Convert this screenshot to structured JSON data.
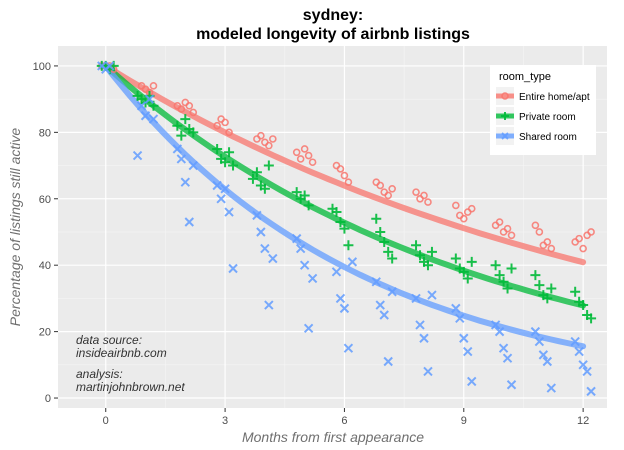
{
  "chart_data": {
    "type": "scatter",
    "title": "sydney:",
    "subtitle": "modeled longevity of airbnb listings",
    "xlabel": "Months from first appearance",
    "ylabel": "Percentage of listings still active",
    "xlim": [
      -1.2,
      12.6
    ],
    "ylim": [
      -3,
      106
    ],
    "xticks": [
      0,
      3,
      6,
      9,
      12
    ],
    "yticks": [
      0,
      20,
      40,
      60,
      80,
      100
    ],
    "grid": true,
    "legend": {
      "title": "room_type",
      "position": "top-right"
    },
    "annotations": [
      "data source:",
      "insideairbnb.com",
      "analysis:",
      "martinjohnbrown.net"
    ],
    "series": [
      {
        "name": "Entire home/apt",
        "color": "#F8766D",
        "marker": "circle",
        "fit_rate": 0.0745,
        "points": [
          [
            -0.1,
            100
          ],
          [
            0,
            100
          ],
          [
            0.1,
            100
          ],
          [
            0.2,
            99
          ],
          [
            0.9,
            94
          ],
          [
            1,
            93
          ],
          [
            1.1,
            92
          ],
          [
            1.2,
            94
          ],
          [
            1.8,
            88
          ],
          [
            1.9,
            87
          ],
          [
            2,
            89
          ],
          [
            2.1,
            88
          ],
          [
            2.2,
            86
          ],
          [
            2.8,
            82
          ],
          [
            2.9,
            84
          ],
          [
            3,
            83
          ],
          [
            3.1,
            80
          ],
          [
            3.8,
            78
          ],
          [
            3.9,
            79
          ],
          [
            4,
            77
          ],
          [
            4.1,
            76
          ],
          [
            4.2,
            78
          ],
          [
            4.8,
            74
          ],
          [
            4.9,
            72
          ],
          [
            5,
            75
          ],
          [
            5.1,
            73
          ],
          [
            5.2,
            71
          ],
          [
            5.8,
            70
          ],
          [
            5.9,
            69
          ],
          [
            6,
            67
          ],
          [
            6.1,
            65
          ],
          [
            6.8,
            65
          ],
          [
            6.9,
            64
          ],
          [
            7,
            62
          ],
          [
            7.1,
            61
          ],
          [
            7.2,
            63
          ],
          [
            7.8,
            62
          ],
          [
            7.9,
            60
          ],
          [
            8,
            61
          ],
          [
            8.1,
            59
          ],
          [
            8.8,
            58
          ],
          [
            8.9,
            55
          ],
          [
            9,
            54
          ],
          [
            9.1,
            56
          ],
          [
            9.2,
            57
          ],
          [
            9.8,
            52
          ],
          [
            9.9,
            53
          ],
          [
            10,
            50
          ],
          [
            10.1,
            51
          ],
          [
            10.2,
            49
          ],
          [
            10.8,
            52
          ],
          [
            10.9,
            50
          ],
          [
            11,
            46
          ],
          [
            11.1,
            47
          ],
          [
            11.2,
            45
          ],
          [
            11.8,
            47
          ],
          [
            11.9,
            48
          ],
          [
            12,
            45
          ],
          [
            12.1,
            49
          ],
          [
            12.2,
            50
          ]
        ]
      },
      {
        "name": "Private room",
        "color": "#00BA38",
        "marker": "plus",
        "fit_rate": 0.1065,
        "points": [
          [
            -0.1,
            100
          ],
          [
            0,
            100
          ],
          [
            0.1,
            99
          ],
          [
            0.2,
            100
          ],
          [
            0.8,
            91
          ],
          [
            0.9,
            90
          ],
          [
            1,
            89
          ],
          [
            1.1,
            91
          ],
          [
            1.2,
            88
          ],
          [
            1.8,
            82
          ],
          [
            1.9,
            79
          ],
          [
            2,
            84
          ],
          [
            2.1,
            81
          ],
          [
            2.2,
            80
          ],
          [
            2.8,
            75
          ],
          [
            2.9,
            72
          ],
          [
            3,
            71
          ],
          [
            3.1,
            74
          ],
          [
            3.2,
            70
          ],
          [
            3.7,
            66
          ],
          [
            3.8,
            68
          ],
          [
            3.9,
            64
          ],
          [
            4,
            63
          ],
          [
            4.1,
            70
          ],
          [
            4.8,
            62
          ],
          [
            4.9,
            60
          ],
          [
            5,
            61
          ],
          [
            5.1,
            58
          ],
          [
            5.7,
            57
          ],
          [
            5.8,
            56
          ],
          [
            5.9,
            53
          ],
          [
            6,
            51
          ],
          [
            6.1,
            46
          ],
          [
            6.8,
            54
          ],
          [
            6.9,
            50
          ],
          [
            7,
            47
          ],
          [
            7.1,
            44
          ],
          [
            7.2,
            42
          ],
          [
            7.8,
            46
          ],
          [
            7.9,
            43
          ],
          [
            8,
            41
          ],
          [
            8.1,
            40
          ],
          [
            8.2,
            44
          ],
          [
            8.8,
            42
          ],
          [
            8.9,
            39
          ],
          [
            9,
            38
          ],
          [
            9.1,
            36
          ],
          [
            9.2,
            41
          ],
          [
            9.8,
            40
          ],
          [
            9.9,
            37
          ],
          [
            10,
            35
          ],
          [
            10.1,
            33
          ],
          [
            10.2,
            39
          ],
          [
            10.8,
            37
          ],
          [
            10.9,
            34
          ],
          [
            11,
            31
          ],
          [
            11.1,
            30
          ],
          [
            11.2,
            33
          ],
          [
            11.8,
            32
          ],
          [
            11.9,
            29
          ],
          [
            12,
            28
          ],
          [
            12.1,
            25
          ],
          [
            12.2,
            24
          ]
        ]
      },
      {
        "name": "Shared room",
        "color": "#619CFF",
        "marker": "cross",
        "fit_rate": 0.155,
        "points": [
          [
            -0.1,
            100
          ],
          [
            0,
            99
          ],
          [
            0.1,
            100
          ],
          [
            0.8,
            73
          ],
          [
            0.9,
            88
          ],
          [
            1,
            85
          ],
          [
            1.1,
            90
          ],
          [
            1.2,
            84
          ],
          [
            1.8,
            75
          ],
          [
            1.9,
            72
          ],
          [
            2,
            65
          ],
          [
            2.1,
            53
          ],
          [
            2.2,
            70
          ],
          [
            2.8,
            64
          ],
          [
            2.9,
            60
          ],
          [
            3,
            63
          ],
          [
            3.1,
            56
          ],
          [
            3.2,
            39
          ],
          [
            3.8,
            55
          ],
          [
            3.9,
            50
          ],
          [
            4,
            45
          ],
          [
            4.1,
            28
          ],
          [
            4.2,
            42
          ],
          [
            4.8,
            48
          ],
          [
            4.9,
            45
          ],
          [
            5,
            40
          ],
          [
            5.1,
            21
          ],
          [
            5.2,
            36
          ],
          [
            5.8,
            38
          ],
          [
            5.9,
            30
          ],
          [
            6,
            27
          ],
          [
            6.1,
            15
          ],
          [
            6.2,
            41
          ],
          [
            6.8,
            35
          ],
          [
            6.9,
            28
          ],
          [
            7,
            25
          ],
          [
            7.1,
            11
          ],
          [
            7.2,
            32
          ],
          [
            7.8,
            30
          ],
          [
            7.9,
            22
          ],
          [
            8,
            18
          ],
          [
            8.1,
            8
          ],
          [
            8.2,
            31
          ],
          [
            8.8,
            27
          ],
          [
            8.9,
            24
          ],
          [
            9,
            18
          ],
          [
            9.1,
            14
          ],
          [
            9.2,
            5
          ],
          [
            9.8,
            22
          ],
          [
            9.9,
            20
          ],
          [
            10,
            15
          ],
          [
            10.1,
            12
          ],
          [
            10.2,
            4
          ],
          [
            10.8,
            20
          ],
          [
            10.9,
            17
          ],
          [
            11,
            13
          ],
          [
            11.1,
            11
          ],
          [
            11.2,
            3
          ],
          [
            11.8,
            17
          ],
          [
            11.9,
            14
          ],
          [
            12,
            10
          ],
          [
            12.1,
            8
          ],
          [
            12.2,
            2
          ]
        ]
      }
    ]
  }
}
